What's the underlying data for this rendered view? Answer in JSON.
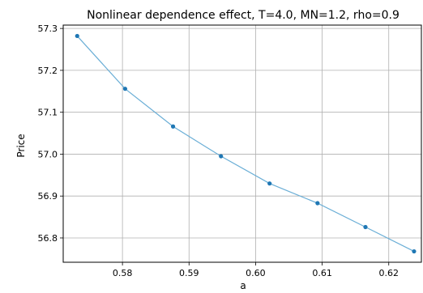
{
  "chart_data": {
    "type": "line",
    "title": "Nonlinear dependence effect, T=4.0, MN=1.2, rho=0.9",
    "xlabel": "a",
    "ylabel": "Price",
    "xlim": [
      0.5711,
      0.6249
    ],
    "ylim": [
      56.742,
      57.308
    ],
    "x_ticks": [
      0.58,
      0.59,
      0.6,
      0.61,
      0.62
    ],
    "x_tick_labels": [
      "0.58",
      "0.59",
      "0.60",
      "0.61",
      "0.62"
    ],
    "y_ticks": [
      56.8,
      56.9,
      57.0,
      57.1,
      57.2,
      57.3
    ],
    "y_tick_labels": [
      "56.8",
      "56.9",
      "57.0",
      "57.1",
      "57.2",
      "57.3"
    ],
    "grid": true,
    "series": [
      {
        "color": "#6aaed6",
        "marker_color": "#1f77b4",
        "x": [
          0.5732,
          0.5804,
          0.5876,
          0.5948,
          0.6021,
          0.6093,
          0.6165,
          0.6238
        ],
        "y": [
          57.282,
          57.156,
          57.066,
          56.995,
          56.93,
          56.883,
          56.826,
          56.768
        ]
      }
    ]
  }
}
